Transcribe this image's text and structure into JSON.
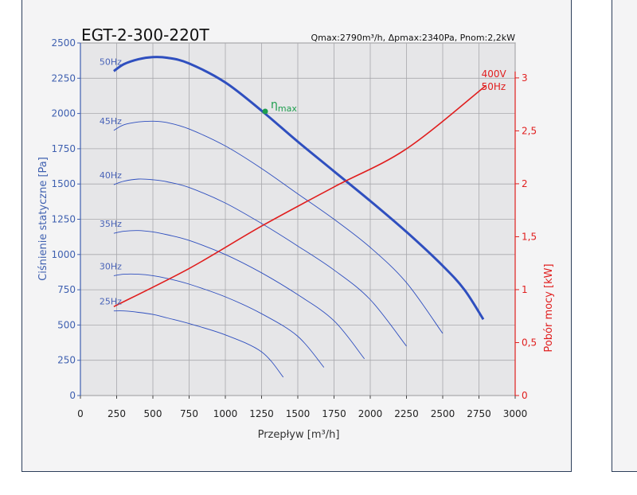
{
  "chart_data": {
    "type": "line",
    "title": "EGT-2-300-220T",
    "subtitle": "Qmax:2790m³/h, Δpmax:2340Pa, Pnom:2,2kW",
    "xlabel": "Przepływ [m³/h]",
    "ylabel": "Ciśnienie statyczne [Pa]",
    "y2label": "Pobór mocy [kW]",
    "xlim": [
      0,
      3000
    ],
    "ylim": [
      0,
      2500
    ],
    "y2lim": [
      0,
      3.33
    ],
    "xticks": [
      0,
      250,
      500,
      750,
      1000,
      1250,
      1500,
      1750,
      2000,
      2250,
      2500,
      2750,
      3000
    ],
    "yticks": [
      0,
      250,
      500,
      750,
      1000,
      1250,
      1500,
      1750,
      2000,
      2250,
      2500
    ],
    "y2ticks": [
      0,
      0.5,
      1,
      1.5,
      2,
      2.5,
      3
    ],
    "xtick_labels": [
      "0",
      "250",
      "500",
      "750",
      "1000",
      "1250",
      "1500",
      "1750",
      "2000",
      "2250",
      "2500",
      "2750",
      "3000"
    ],
    "ytick_labels": [
      "0",
      "250",
      "500",
      "750",
      "1000",
      "1250",
      "1500",
      "1750",
      "2000",
      "2250",
      "2500"
    ],
    "y2tick_labels": [
      "0",
      "0,5",
      "1",
      "1,5",
      "2",
      "2,5",
      "3"
    ],
    "grid": true,
    "colors": {
      "pressure": "#2f4fbf",
      "power": "#e01e1e",
      "eta": "#1e9e4e",
      "axis": "#3f60b0"
    },
    "series": [
      {
        "name": "50Hz",
        "emphasis": true,
        "x": [
          230,
          300,
          400,
          500,
          600,
          750,
          1000,
          1250,
          1500,
          1750,
          2000,
          2250,
          2500,
          2650,
          2780
        ],
        "y": [
          2300,
          2350,
          2385,
          2400,
          2395,
          2355,
          2220,
          2020,
          1800,
          1590,
          1380,
          1160,
          920,
          750,
          540
        ]
      },
      {
        "name": "45Hz",
        "x": [
          230,
          300,
          400,
          500,
          600,
          750,
          1000,
          1250,
          1500,
          1750,
          2000,
          2250,
          2500
        ],
        "y": [
          1880,
          1920,
          1940,
          1945,
          1935,
          1890,
          1770,
          1610,
          1430,
          1250,
          1050,
          800,
          440
        ]
      },
      {
        "name": "40Hz",
        "x": [
          230,
          300,
          400,
          500,
          600,
          750,
          1000,
          1250,
          1500,
          1750,
          2000,
          2250
        ],
        "y": [
          1495,
          1520,
          1535,
          1530,
          1515,
          1475,
          1365,
          1220,
          1060,
          890,
          680,
          350
        ]
      },
      {
        "name": "35Hz",
        "x": [
          230,
          300,
          400,
          500,
          600,
          750,
          1000,
          1250,
          1500,
          1750,
          1960
        ],
        "y": [
          1150,
          1165,
          1170,
          1160,
          1140,
          1100,
          1000,
          870,
          715,
          530,
          260
        ]
      },
      {
        "name": "30Hz",
        "x": [
          230,
          300,
          400,
          500,
          600,
          750,
          1000,
          1250,
          1500,
          1680
        ],
        "y": [
          850,
          860,
          860,
          850,
          830,
          790,
          700,
          580,
          420,
          200
        ]
      },
      {
        "name": "25Hz",
        "x": [
          230,
          300,
          400,
          500,
          600,
          750,
          1000,
          1250,
          1400
        ],
        "y": [
          600,
          600,
          590,
          575,
          550,
          510,
          430,
          310,
          130
        ]
      }
    ],
    "power_series": {
      "name": "400V 50Hz",
      "x": [
        230,
        750,
        1250,
        1750,
        2250,
        2800
      ],
      "y_kw": [
        0.84,
        1.2,
        1.6,
        1.97,
        2.33,
        2.93
      ]
    },
    "annotations": [
      {
        "label": "η",
        "sub": "max",
        "x": 1275,
        "y": 2015
      }
    ]
  }
}
